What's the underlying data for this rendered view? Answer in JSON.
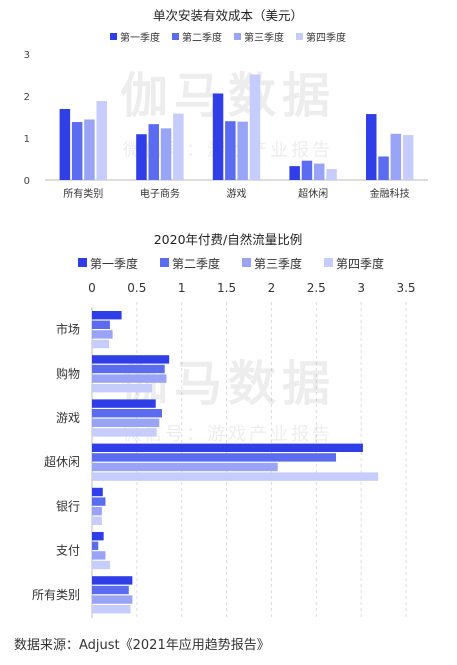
{
  "watermark": {
    "brand": "伽马数据",
    "sub": "微信号：游戏产业报告"
  },
  "colors": {
    "s1": "#2f3ee6",
    "s2": "#5b6cf0",
    "s3": "#9aa4f6",
    "s4": "#c6ccfb",
    "axis": "#bbbbbb",
    "grid": "#dddddd"
  },
  "source_text": "数据来源：Adjust《2021年应用趋势报告》",
  "chart_data": [
    {
      "type": "bar",
      "title": "单次安装有效成本（美元）",
      "categories": [
        "所有类别",
        "电子商务",
        "游戏",
        "超休闲",
        "金融科技"
      ],
      "series": [
        {
          "name": "第一季度",
          "values": [
            1.69,
            1.09,
            2.06,
            0.33,
            1.57
          ]
        },
        {
          "name": "第二季度",
          "values": [
            1.38,
            1.33,
            1.4,
            0.46,
            0.56
          ]
        },
        {
          "name": "第三季度",
          "values": [
            1.44,
            1.23,
            1.39,
            0.39,
            1.1
          ]
        },
        {
          "name": "第四季度",
          "values": [
            1.88,
            1.58,
            2.51,
            0.26,
            1.07
          ]
        }
      ],
      "ylim": [
        0,
        3
      ],
      "yticks": [
        0,
        1,
        2,
        3
      ],
      "legend": "top",
      "grid": false
    },
    {
      "type": "bar",
      "orientation": "horizontal",
      "title": "2020年付费/自然流量比例",
      "categories": [
        "市场",
        "购物",
        "游戏",
        "超休闲",
        "银行",
        "支付",
        "所有类别"
      ],
      "series": [
        {
          "name": "第一季度",
          "values": [
            0.33,
            0.86,
            0.71,
            3.02,
            0.12,
            0.13,
            0.45
          ]
        },
        {
          "name": "第二季度",
          "values": [
            0.2,
            0.81,
            0.78,
            2.72,
            0.15,
            0.07,
            0.41
          ]
        },
        {
          "name": "第三季度",
          "values": [
            0.23,
            0.83,
            0.75,
            2.07,
            0.11,
            0.15,
            0.45
          ]
        },
        {
          "name": "第四季度",
          "values": [
            0.19,
            0.67,
            0.72,
            3.19,
            0.11,
            0.2,
            0.43
          ]
        }
      ],
      "xlim": [
        0,
        3.5
      ],
      "xticks": [
        "0",
        "0.5",
        "1",
        "1.5",
        "2",
        "2.5",
        "3",
        "3.5"
      ],
      "legend": "top",
      "grid": true
    }
  ]
}
